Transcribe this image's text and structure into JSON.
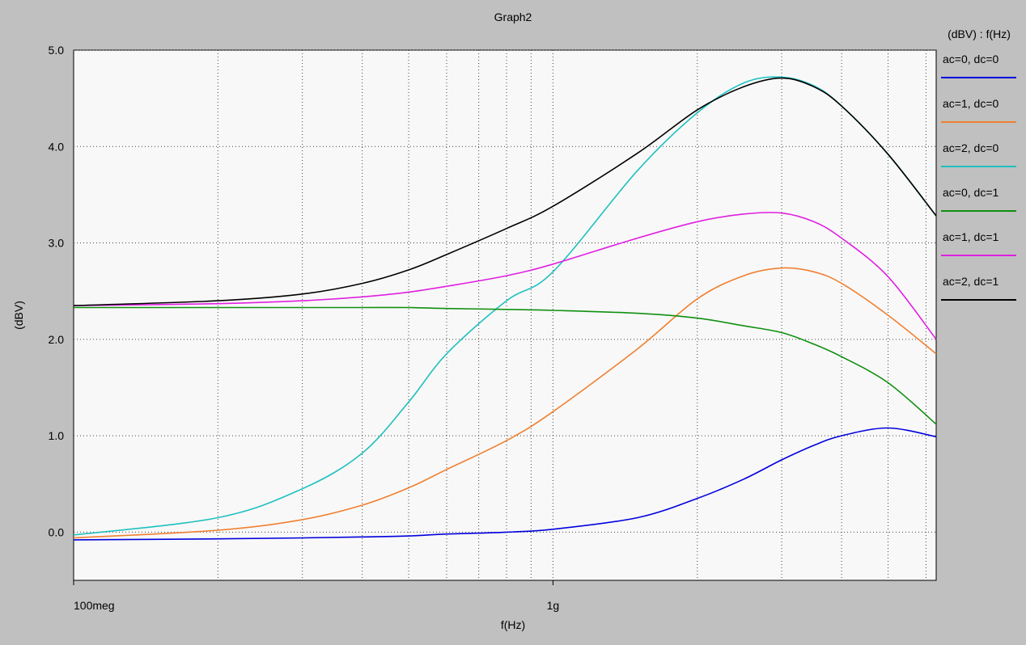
{
  "window": {
    "title": "Graph2"
  },
  "chart_data": {
    "type": "line",
    "title": "Graph2",
    "xlabel": "f(Hz)",
    "ylabel": "(dBV)",
    "x_scale": "log",
    "xlim": [
      100000000,
      6300000000
    ],
    "ylim": [
      -0.5,
      5.0
    ],
    "x_ticks": [
      {
        "value": 100000000,
        "label": "100meg"
      },
      {
        "value": 1000000000,
        "label": "1g"
      }
    ],
    "y_ticks": [
      {
        "value": 0.0,
        "label": "0.0"
      },
      {
        "value": 1.0,
        "label": "1.0"
      },
      {
        "value": 2.0,
        "label": "2.0"
      },
      {
        "value": 3.0,
        "label": "3.0"
      },
      {
        "value": 4.0,
        "label": "4.0"
      },
      {
        "value": 5.0,
        "label": "5.0"
      }
    ],
    "grid": true,
    "legend_title": "(dBV) : f(Hz)",
    "legend_position": "right",
    "x": [
      100000000,
      200000000,
      300000000,
      400000000,
      500000000,
      600000000,
      800000000,
      1000000000,
      1500000000,
      2000000000,
      2500000000,
      3000000000,
      3500000000,
      4000000000,
      5000000000,
      6300000000
    ],
    "series": [
      {
        "name": "ac=0, dc=0",
        "color": "#0000dd",
        "values": [
          -0.08,
          -0.07,
          -0.06,
          -0.05,
          -0.04,
          -0.02,
          0.0,
          0.03,
          0.15,
          0.35,
          0.55,
          0.75,
          0.9,
          1.0,
          1.08,
          0.99
        ]
      },
      {
        "name": "ac=1, dc=0",
        "color": "#f08030",
        "values": [
          -0.06,
          0.02,
          0.13,
          0.28,
          0.46,
          0.65,
          0.95,
          1.25,
          1.9,
          2.42,
          2.66,
          2.74,
          2.7,
          2.58,
          2.25,
          1.85
        ]
      },
      {
        "name": "ac=2, dc=0",
        "color": "#20c0c0",
        "values": [
          -0.03,
          0.15,
          0.45,
          0.82,
          1.35,
          1.85,
          2.4,
          2.7,
          3.75,
          4.35,
          4.66,
          4.72,
          4.63,
          4.42,
          3.92,
          3.28
        ]
      },
      {
        "name": "ac=0, dc=1",
        "color": "#109010",
        "values": [
          2.33,
          2.33,
          2.33,
          2.33,
          2.33,
          2.32,
          2.31,
          2.3,
          2.27,
          2.22,
          2.14,
          2.07,
          1.95,
          1.82,
          1.55,
          1.12
        ]
      },
      {
        "name": "ac=1, dc=1",
        "color": "#e020e0",
        "values": [
          2.35,
          2.37,
          2.4,
          2.44,
          2.49,
          2.55,
          2.66,
          2.78,
          3.05,
          3.22,
          3.3,
          3.31,
          3.22,
          3.05,
          2.65,
          2.0
        ]
      },
      {
        "name": "ac=2, dc=1",
        "color": "#000000",
        "values": [
          2.35,
          2.4,
          2.47,
          2.58,
          2.72,
          2.88,
          3.15,
          3.38,
          3.93,
          4.38,
          4.62,
          4.71,
          4.62,
          4.42,
          3.92,
          3.28
        ]
      }
    ]
  }
}
